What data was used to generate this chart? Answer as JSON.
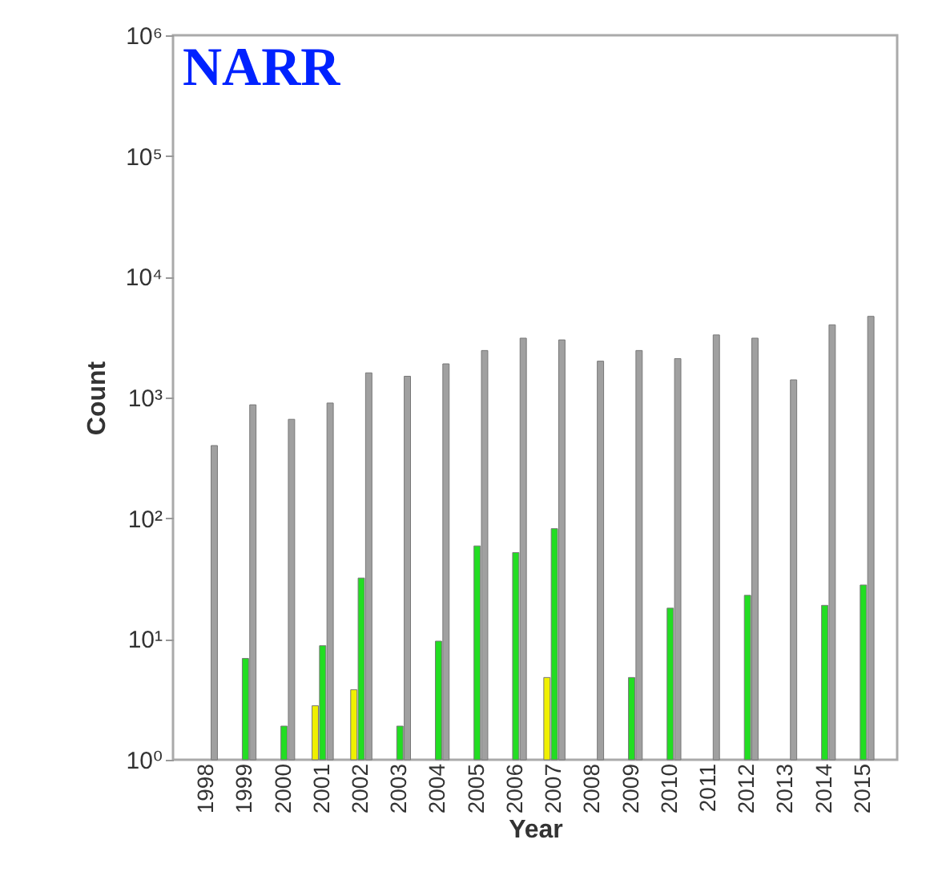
{
  "chart_data": {
    "type": "bar",
    "annotations": [
      "NARR"
    ],
    "xlabel": "Year",
    "ylabel": "Count",
    "categories": [
      "1998",
      "1999",
      "2000",
      "2001",
      "2002",
      "2003",
      "2004",
      "2005",
      "2006",
      "2007",
      "2008",
      "2009",
      "2010",
      "2011",
      "2012",
      "2013",
      "2014",
      "2015"
    ],
    "series": [
      {
        "color": "#f0f000",
        "values": [
          null,
          null,
          null,
          2.8,
          3.8,
          null,
          null,
          null,
          null,
          4.8,
          null,
          null,
          null,
          null,
          null,
          null,
          null,
          null
        ]
      },
      {
        "color": "#22dd22",
        "values": [
          null,
          6.9,
          1.9,
          8.8,
          32,
          1.9,
          9.6,
          59,
          52,
          82,
          null,
          4.8,
          18,
          null,
          23,
          null,
          19,
          28
        ]
      },
      {
        "color": "#a0a0a0",
        "values": [
          400,
          870,
          660,
          900,
          1600,
          1500,
          1900,
          2450,
          3100,
          3000,
          2000,
          2450,
          2100,
          3300,
          3100,
          1400,
          4000,
          4700
        ]
      }
    ],
    "log": true,
    "ylim": [
      1,
      1000000
    ],
    "yticks": [
      {
        "value": 1,
        "label": "10⁰"
      },
      {
        "value": 10,
        "label": "10¹"
      },
      {
        "value": 100,
        "label": "10²"
      },
      {
        "value": 1000,
        "label": "10³"
      },
      {
        "value": 10000,
        "label": "10⁴"
      },
      {
        "value": 100000,
        "label": "10⁵"
      },
      {
        "value": 1000000,
        "label": "10⁶"
      }
    ]
  }
}
